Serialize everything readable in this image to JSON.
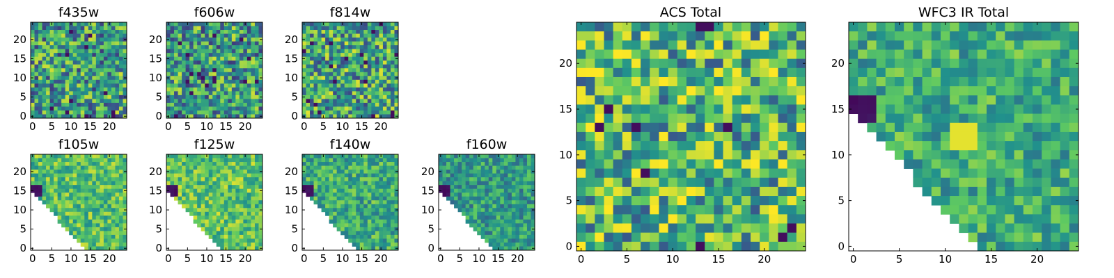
{
  "figure": {
    "colormap": "viridis",
    "colormap_stops": [
      "#440154",
      "#3b528b",
      "#21918c",
      "#5ec962",
      "#fde725"
    ]
  },
  "chart_data": [
    {
      "type": "heatmap",
      "title": "f435w",
      "grid": 25,
      "xticks": [
        "0",
        "5",
        "10",
        "15",
        "20"
      ],
      "yticks": [
        "0",
        "5",
        "10",
        "15",
        "20"
      ],
      "pattern": "noise",
      "seed": 11,
      "mean": 0.55
    },
    {
      "type": "heatmap",
      "title": "f606w",
      "grid": 25,
      "xticks": [
        "0",
        "5",
        "10",
        "15",
        "20"
      ],
      "yticks": [
        "0",
        "5",
        "10",
        "15",
        "20"
      ],
      "pattern": "noise",
      "seed": 23,
      "mean": 0.55
    },
    {
      "type": "heatmap",
      "title": "f814w",
      "grid": 25,
      "xticks": [
        "0",
        "5",
        "10",
        "15",
        "20"
      ],
      "yticks": [
        "0",
        "5",
        "10",
        "15",
        "20"
      ],
      "pattern": "noise",
      "seed": 37,
      "mean": 0.58
    },
    {
      "type": "heatmap",
      "title": "f105w",
      "grid": 25,
      "xticks": [
        "0",
        "5",
        "10",
        "15",
        "20"
      ],
      "yticks": [
        "0",
        "5",
        "10",
        "15",
        "20"
      ],
      "pattern": "wedge",
      "seed": 41,
      "mean": 0.7,
      "dark_blob": [
        1,
        15
      ]
    },
    {
      "type": "heatmap",
      "title": "f125w",
      "grid": 25,
      "xticks": [
        "0",
        "5",
        "10",
        "15",
        "20"
      ],
      "yticks": [
        "0",
        "5",
        "10",
        "15",
        "20"
      ],
      "pattern": "wedge",
      "seed": 53,
      "mean": 0.72,
      "dark_blob": [
        1,
        15
      ]
    },
    {
      "type": "heatmap",
      "title": "f140w",
      "grid": 25,
      "xticks": [
        "0",
        "5",
        "10",
        "15",
        "20"
      ],
      "yticks": [
        "0",
        "5",
        "10",
        "15",
        "20"
      ],
      "pattern": "wedge",
      "seed": 67,
      "mean": 0.62,
      "dark_blob": [
        1,
        15
      ]
    },
    {
      "type": "heatmap",
      "title": "f160w",
      "grid": 25,
      "xticks": [
        "0",
        "5",
        "10",
        "15",
        "20"
      ],
      "yticks": [
        "0",
        "5",
        "10",
        "15",
        "20"
      ],
      "pattern": "wedge",
      "seed": 79,
      "mean": 0.55,
      "dark_blob": [
        1,
        15
      ]
    },
    {
      "type": "heatmap",
      "title": "ACS Total",
      "grid": 25,
      "xticks": [
        "0",
        "5",
        "10",
        "15",
        "20"
      ],
      "yticks": [
        "0",
        "5",
        "10",
        "15",
        "20"
      ],
      "pattern": "noise",
      "seed": 97,
      "mean": 0.65
    },
    {
      "type": "heatmap",
      "title": "WFC3 IR Total",
      "grid": 25,
      "xticks": [
        "0",
        "5",
        "10",
        "15",
        "20"
      ],
      "yticks": [
        "0",
        "5",
        "10",
        "15",
        "20"
      ],
      "pattern": "wedge",
      "seed": 101,
      "mean": 0.62,
      "dark_blob": [
        1,
        15
      ],
      "bright_blob": [
        12,
        12
      ]
    }
  ]
}
